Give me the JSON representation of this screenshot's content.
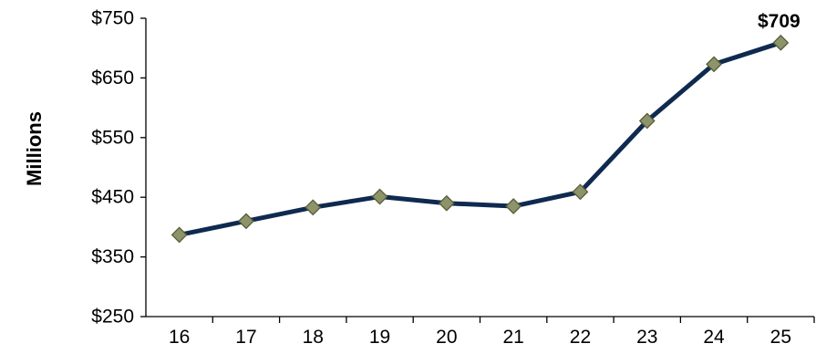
{
  "chart_data": {
    "type": "line",
    "title": "",
    "xlabel": "",
    "ylabel": "Millions",
    "categories": [
      "16",
      "17",
      "18",
      "19",
      "20",
      "21",
      "22",
      "23",
      "24",
      "25"
    ],
    "series": [
      {
        "values": [
          387,
          410,
          433,
          451,
          440,
          435,
          459,
          578,
          673,
          709
        ]
      }
    ],
    "ylim": [
      250,
      750
    ],
    "yticks": [
      250,
      350,
      450,
      550,
      650,
      750
    ],
    "ytick_labels": [
      "$250",
      "$350",
      "$450",
      "$550",
      "$650",
      "$750"
    ],
    "data_labels": [
      {
        "index": 9,
        "text": "$709"
      }
    ],
    "grid": false,
    "legend": "none",
    "colors": {
      "line": "#0f2a4f",
      "marker_fill": "#8d946a",
      "marker_stroke": "#575c38",
      "axis": "#000000"
    }
  }
}
